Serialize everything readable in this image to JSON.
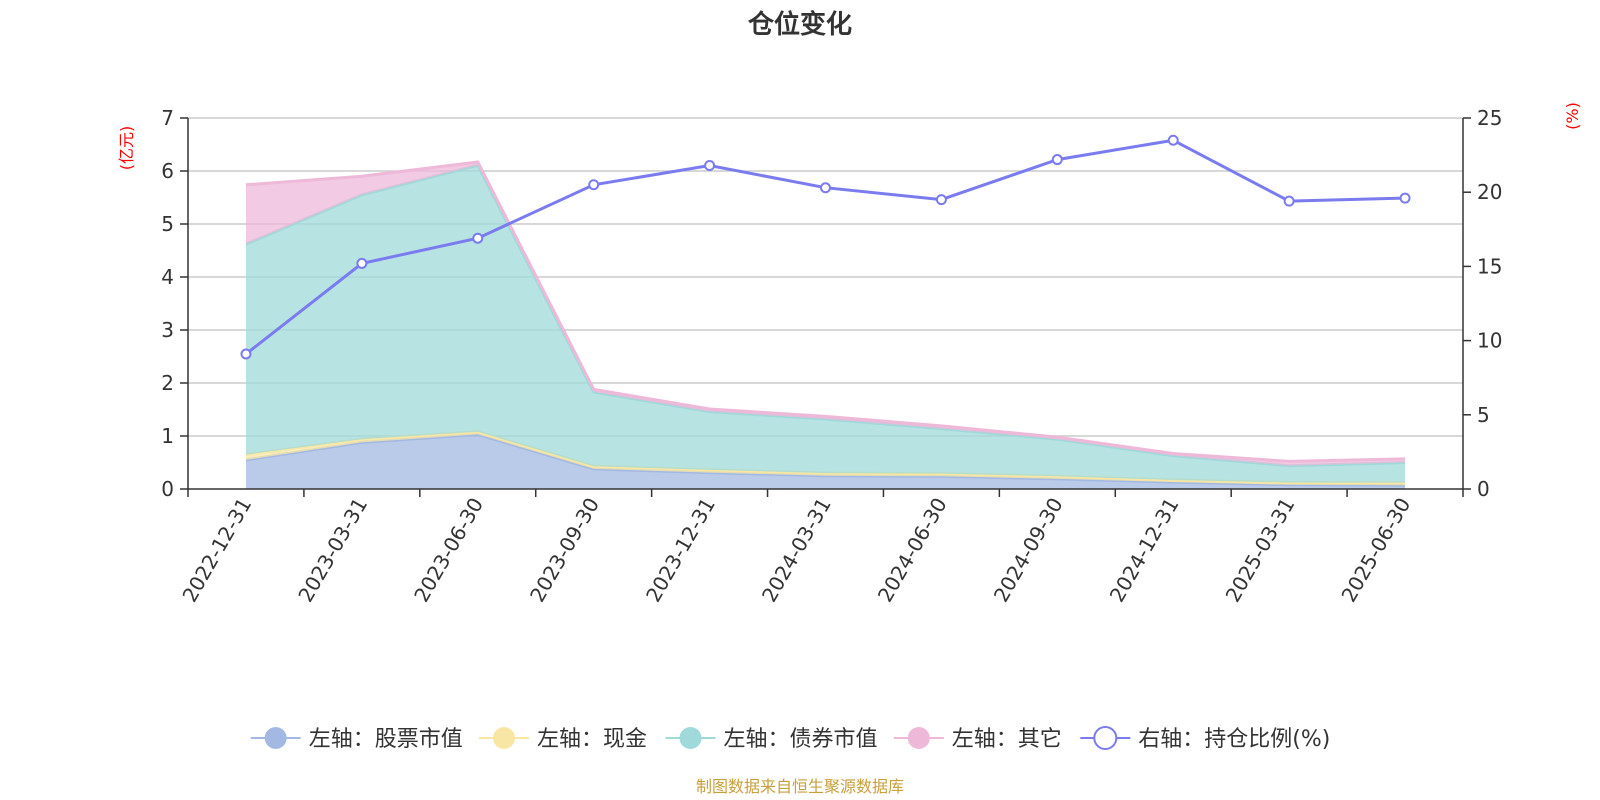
{
  "chart_data": {
    "type": "area",
    "title": "仓位变化",
    "categories": [
      "2022-12-31",
      "2023-03-31",
      "2023-06-30",
      "2023-09-30",
      "2023-12-31",
      "2024-03-31",
      "2024-06-30",
      "2024-09-30",
      "2024-12-31",
      "2025-03-31",
      "2025-06-30"
    ],
    "left_axis": {
      "unit": "(亿元)",
      "ylim": [
        0,
        7
      ],
      "ticks": [
        "0",
        "1",
        "2",
        "3",
        "4",
        "5",
        "6",
        "7"
      ]
    },
    "right_axis": {
      "unit": "(%)",
      "ylim": [
        0,
        25
      ],
      "ticks": [
        "0",
        "5",
        "10",
        "15",
        "20",
        "25"
      ]
    },
    "stacked": true,
    "grid": true,
    "legend_position": "bottom",
    "series": [
      {
        "name": "左轴：股票市值",
        "axis": "left",
        "type": "area",
        "color": "#a3b9e3",
        "values": [
          0.55,
          0.88,
          1.03,
          0.38,
          0.31,
          0.25,
          0.24,
          0.19,
          0.13,
          0.08,
          0.07
        ]
      },
      {
        "name": "左轴：现金",
        "axis": "left",
        "type": "area",
        "color": "#f8e7a4",
        "values": [
          0.1,
          0.06,
          0.05,
          0.05,
          0.05,
          0.05,
          0.05,
          0.05,
          0.04,
          0.04,
          0.05
        ]
      },
      {
        "name": "左轴：债券市值",
        "axis": "left",
        "type": "area",
        "color": "#9fd9d9",
        "values": [
          3.97,
          4.61,
          5.03,
          1.4,
          1.1,
          1.02,
          0.85,
          0.7,
          0.46,
          0.32,
          0.38
        ]
      },
      {
        "name": "左轴：其它",
        "axis": "left",
        "type": "area",
        "color": "#eeb8d9",
        "values": [
          1.12,
          0.35,
          0.06,
          0.05,
          0.05,
          0.05,
          0.05,
          0.04,
          0.04,
          0.08,
          0.07
        ]
      },
      {
        "name": "右轴：持仓比例(%)",
        "axis": "right",
        "type": "line",
        "color": "#7b7bf0",
        "values": [
          9.1,
          15.2,
          16.9,
          20.5,
          21.8,
          20.3,
          19.5,
          22.2,
          23.5,
          19.4,
          19.6
        ]
      }
    ]
  },
  "source_text": "制图数据来自恒生聚源数据库"
}
